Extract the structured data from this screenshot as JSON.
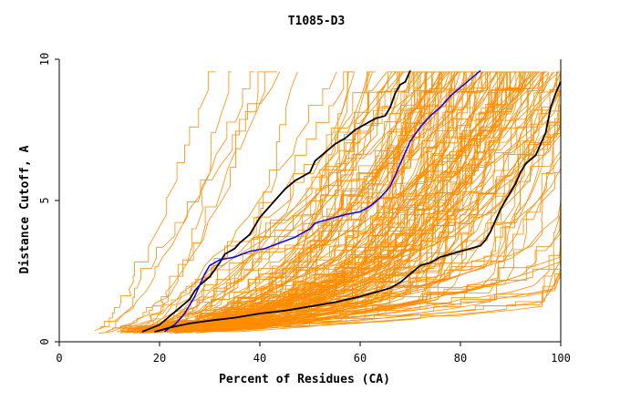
{
  "chart_data": {
    "type": "line",
    "title": "T1085-D3",
    "xlabel": "Percent of Residues (CA)",
    "ylabel": "Distance Cutoff, A",
    "xlim": [
      0,
      100
    ],
    "ylim": [
      0,
      10
    ],
    "x_ticks": [
      0,
      20,
      40,
      60,
      80,
      100
    ],
    "y_ticks": [
      0,
      5,
      10
    ],
    "grid": false,
    "colors": {
      "background_series": "#ff8c00",
      "highlight_blue": "#0000ff",
      "highlight_black": "#000000",
      "axis": "#000000"
    },
    "highlighted_series": [
      {
        "color": "#000000",
        "x": [
          16.5,
          20,
          22,
          24,
          26,
          27,
          28,
          30,
          32,
          33,
          35,
          36,
          38,
          39,
          40,
          41,
          42,
          44,
          45,
          47,
          49,
          50,
          51,
          53,
          55,
          57,
          59,
          61,
          63,
          65,
          66,
          67,
          68,
          69,
          70
        ],
        "y": [
          0.35,
          0.6,
          0.9,
          1.2,
          1.5,
          1.8,
          2.0,
          2.3,
          2.8,
          3.1,
          3.3,
          3.5,
          3.8,
          4.1,
          4.4,
          4.6,
          4.8,
          5.2,
          5.4,
          5.7,
          5.9,
          6.0,
          6.4,
          6.7,
          7.0,
          7.2,
          7.5,
          7.7,
          7.9,
          8.0,
          8.3,
          8.8,
          9.1,
          9.2,
          9.6
        ]
      },
      {
        "color": "#0000ff",
        "x": [
          21,
          22,
          23,
          24,
          25,
          26,
          27,
          28,
          29,
          30,
          32,
          35,
          38,
          41,
          44,
          47,
          50,
          51,
          53,
          57,
          60,
          62,
          64,
          65,
          66,
          67,
          68,
          69,
          70,
          72,
          74,
          76,
          78,
          80,
          82,
          84
        ],
        "y": [
          0.35,
          0.5,
          0.6,
          0.8,
          1.0,
          1.3,
          1.6,
          2.0,
          2.4,
          2.7,
          2.9,
          3.0,
          3.2,
          3.3,
          3.5,
          3.7,
          4.0,
          4.2,
          4.3,
          4.5,
          4.6,
          4.8,
          5.1,
          5.3,
          5.5,
          5.9,
          6.3,
          6.7,
          7.1,
          7.6,
          8.0,
          8.3,
          8.7,
          9.0,
          9.3,
          9.6
        ]
      },
      {
        "color": "#000000",
        "x": [
          19,
          22,
          26,
          30,
          35,
          40,
          45,
          50,
          55,
          60,
          62,
          64,
          66,
          68,
          70,
          72,
          74,
          76,
          78,
          80,
          82,
          84,
          85,
          86,
          87,
          88,
          89,
          90,
          91,
          92,
          93,
          95,
          96,
          97,
          98,
          99,
          100
        ],
        "y": [
          0.35,
          0.5,
          0.65,
          0.75,
          0.85,
          1.0,
          1.1,
          1.25,
          1.4,
          1.6,
          1.7,
          1.8,
          1.9,
          2.1,
          2.4,
          2.7,
          2.8,
          3.0,
          3.1,
          3.2,
          3.3,
          3.4,
          3.6,
          3.9,
          4.3,
          4.7,
          5.0,
          5.3,
          5.6,
          6.0,
          6.3,
          6.6,
          7.0,
          7.4,
          8.3,
          8.8,
          9.2
        ]
      }
    ]
  }
}
